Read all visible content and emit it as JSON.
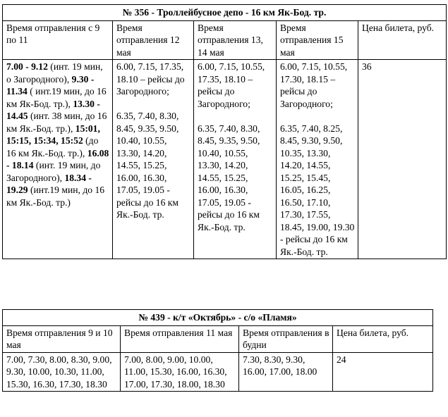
{
  "table1": {
    "title": "№ 356 - Троллейбусное депо - 16 км Як-Бод. тр.",
    "headers": [
      "Время отправления с 9 по 11",
      "Время отправления 12 мая",
      "Время отправления 13, 14 мая",
      "Время отправления 15 мая",
      "Цена билета, руб."
    ],
    "col1": {
      "s1_bold": "7.00 - 9.12",
      "s1_text": " (инт. 19 мин, о Загородного),",
      "s2_bold": "9.30 - 11.34",
      "s2_text": " ( инт.19 мин, до 16 км Як-Бод. тр.),",
      "s3_bold": "13.30 - 14.45",
      "s3_text": " (инт. 38 мин, до 16 км Як.-Бод. тр.),",
      "s4_bold": "15:01, 15:15, 15:34, 15:52",
      "s4_text": " (до 16 км Як.-Бод. тр.),",
      "s5_bold": "16.08 - 18.14",
      "s5_text": " (инт. 19 мин, до Загородного),",
      "s6_bold": "18.34 - 19.29",
      "s6_text": " (инт.19 мин, до 16 км Як.-Бод. тр.)"
    },
    "col2": {
      "p1": "6.00, 7.15, 17.35, 18.10 – рейсы до Загородного;",
      "p2": "6.35, 7.40, 8.30, 8.45, 9.35, 9.50, 10.40, 10.55, 13.30, 14.20, 14.55, 15.25, 16.00, 16.30, 17.05, 19.05 - рейсы до 16 км Як.-Бод. тр."
    },
    "col3": {
      "p1": "6.00, 7.15, 10.55, 17.35, 18.10 – рейсы до Загородного;",
      "p2": "6.35, 7.40, 8.30, 8.45, 9.35, 9.50, 10.40, 10.55, 13.30, 14.20, 14.55, 15.25, 16.00, 16.30, 17.05, 19.05 - рейсы до 16 км Як.-Бод. тр."
    },
    "col4": {
      "p1": "6.00, 7.15, 10.55, 17.30, 18.15 – рейсы до Загородного;",
      "p2": "6.35, 7.40, 8.25, 8.45, 9.30, 9.50, 10.35, 13.30, 14.20, 14.55, 15.25, 15.45, 16.05, 16.25, 16.50, 17.10, 17.30, 17.55, 18.45, 19.00, 19.30 - рейсы до 16 км Як.-Бод. тр."
    },
    "price": "36"
  },
  "table2": {
    "title": "№ 439 - к/т «Октябрь» - с/о «Пламя»",
    "headers": [
      "Время отправления 9 и 10 мая",
      "Время отправления 11 мая",
      "Время отправления в будни",
      "Цена билета, руб."
    ],
    "cells": [
      "7.00, 7.30, 8.00, 8.30, 9.00, 9.30, 10.00, 10.30, 11.00, 15.30, 16.30, 17.30, 18.30",
      "7.00, 8.00, 9.00, 10.00, 11.00, 15.30, 16.00, 16.30, 17.00, 17.30, 18.00, 18.30",
      "7.30, 8.30, 9.30, 16.00, 17.00, 18.00",
      "24"
    ]
  }
}
